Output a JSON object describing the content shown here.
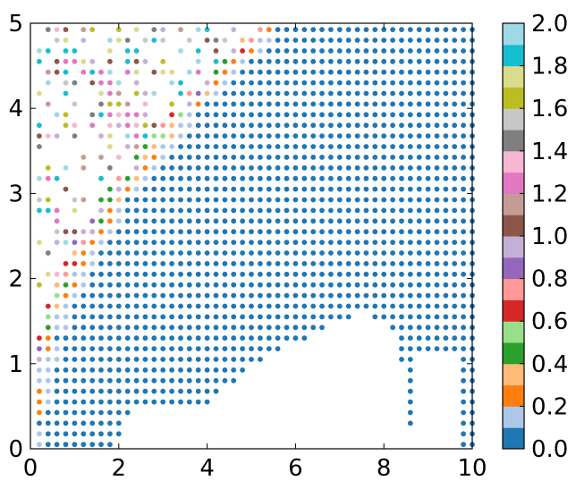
{
  "chart_data": {
    "type": "scatter",
    "title": "",
    "xlabel": "",
    "ylabel": "",
    "xlim": [
      0,
      10
    ],
    "ylim": [
      0,
      5
    ],
    "x_ticks": [
      "0",
      "2",
      "4",
      "6",
      "8",
      "10"
    ],
    "y_ticks": [
      "0",
      "1",
      "2",
      "3",
      "4",
      "5"
    ],
    "grid": false,
    "grid_spacing": {
      "x": 0.2,
      "y": 0.125
    },
    "marker_color_scale": "tab20",
    "colorbar": {
      "range": [
        0,
        2.0
      ],
      "tick_labels": [
        "0.0",
        "0.2",
        "0.4",
        "0.6",
        "0.8",
        "1.0",
        "1.2",
        "1.4",
        "1.6",
        "1.8",
        "2.0"
      ],
      "colors": [
        "#1f77b4",
        "#aec7e8",
        "#ff7f0e",
        "#ffbb78",
        "#2ca02c",
        "#98df8a",
        "#d62728",
        "#ff9896",
        "#9467bd",
        "#c5b0d5",
        "#8c564b",
        "#c49c94",
        "#e377c2",
        "#f7b6d2",
        "#7f7f7f",
        "#c7c7c7",
        "#bcbd22",
        "#dbdb8d",
        "#17becf",
        "#9edae5"
      ]
    },
    "empty_region_boundary": [
      [
        2.0,
        0.1
      ],
      [
        2.1,
        0.35
      ],
      [
        2.5,
        0.45
      ],
      [
        4.0,
        0.5
      ],
      [
        5.0,
        0.95
      ],
      [
        6.0,
        1.25
      ],
      [
        7.0,
        1.5
      ],
      [
        7.5,
        1.6
      ],
      [
        8.0,
        1.45
      ],
      [
        8.35,
        1.2
      ],
      [
        8.5,
        0.75
      ],
      [
        8.6,
        0.3
      ],
      [
        8.7,
        0.05
      ]
    ],
    "right_edge_gap": {
      "x_start": 8.8,
      "x_end": 9.8,
      "points_kept_above": 1.1
    },
    "color_bands": [
      {
        "value_range": [
          0.0,
          0.1
        ],
        "region": "x > 0.14 + 0.27*(y-0.1)^1.9 (main bulk)"
      },
      {
        "value_range": [
          0.1,
          0.3
        ],
        "region": "transition band near left boundary"
      },
      {
        "value_range": [
          0.3,
          1.0
        ],
        "region": "x between 1.5 and 3.4, y > 2"
      },
      {
        "value_range": [
          1.0,
          2.0
        ],
        "region": "sparse points at x < 2, y > 2"
      }
    ]
  }
}
